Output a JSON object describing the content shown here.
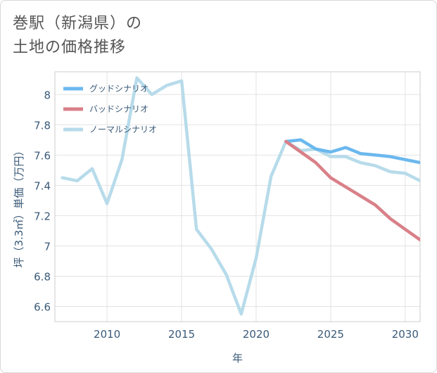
{
  "title_line1": "巻駅（新潟県）の",
  "title_line2": "土地の価格推移",
  "chart_data": {
    "type": "line",
    "title": "巻駅（新潟県）の土地の価格推移",
    "xlabel": "年",
    "ylabel": "坪（3.3㎡）単価（万円）",
    "xlim": [
      2006.5,
      2031
    ],
    "ylim": [
      6.5,
      8.15
    ],
    "xticks": [
      2010,
      2015,
      2020,
      2025,
      2030
    ],
    "yticks": [
      6.6,
      6.8,
      7,
      7.2,
      7.4,
      7.6,
      7.8,
      8
    ],
    "ytick_labels": [
      "6.6",
      "6.8",
      "7",
      "7.2",
      "7.4",
      "7.6",
      "7.8",
      "8"
    ],
    "legend_position": "top-left",
    "series": [
      {
        "name": "グッドシナリオ",
        "color": "#6bb8ee",
        "x": [
          2022,
          2023,
          2024,
          2025,
          2026,
          2027,
          2028,
          2029,
          2030,
          2031
        ],
        "y": [
          7.69,
          7.7,
          7.64,
          7.62,
          7.65,
          7.61,
          7.6,
          7.59,
          7.57,
          7.55
        ]
      },
      {
        "name": "バッドシナリオ",
        "color": "#d98088",
        "x": [
          2022,
          2023,
          2024,
          2025,
          2026,
          2027,
          2028,
          2029,
          2030,
          2031
        ],
        "y": [
          7.69,
          7.62,
          7.55,
          7.45,
          7.39,
          7.33,
          7.27,
          7.18,
          7.11,
          7.04
        ]
      },
      {
        "name": "ノーマルシナリオ",
        "color": "#b7dbea",
        "x": [
          2007,
          2008,
          2009,
          2010,
          2011,
          2012,
          2013,
          2014,
          2015,
          2016,
          2017,
          2018,
          2019,
          2020,
          2021,
          2022,
          2023,
          2024,
          2025,
          2026,
          2027,
          2028,
          2029,
          2030,
          2031
        ],
        "y": [
          7.45,
          7.43,
          7.51,
          7.28,
          7.57,
          8.11,
          8.0,
          8.06,
          8.09,
          7.11,
          6.98,
          6.81,
          6.55,
          6.92,
          7.46,
          7.69,
          7.63,
          7.64,
          7.59,
          7.59,
          7.55,
          7.53,
          7.49,
          7.48,
          7.43
        ]
      }
    ]
  }
}
